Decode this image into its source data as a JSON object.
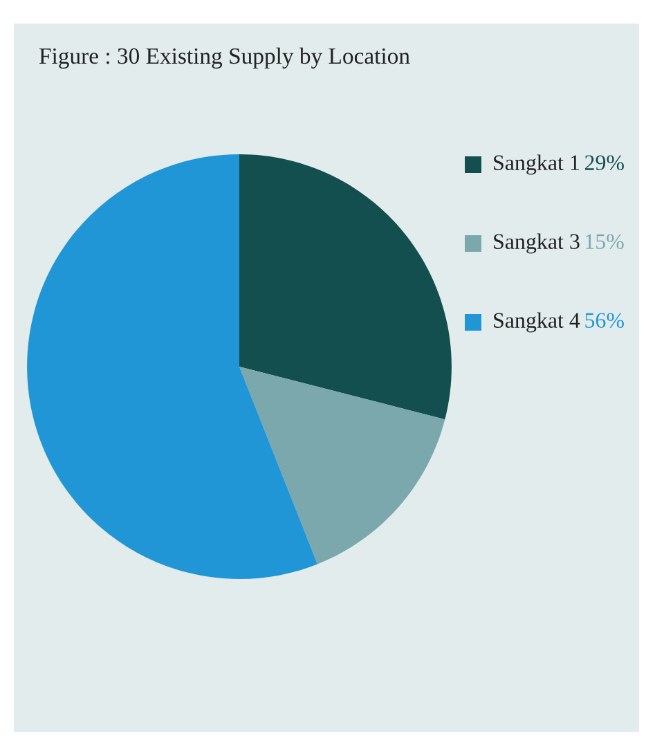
{
  "chart_data": {
    "type": "pie",
    "title": "Figure : 30 Existing Supply by Location",
    "categories": [
      "Sangkat 1",
      "Sangkat 3",
      "Sangkat 4"
    ],
    "values": [
      29,
      15,
      56
    ],
    "colors": [
      "#134f4f",
      "#7aa8ac",
      "#2196d6"
    ],
    "value_labels": [
      "29%",
      "15%",
      "56%"
    ],
    "legend": "right"
  }
}
